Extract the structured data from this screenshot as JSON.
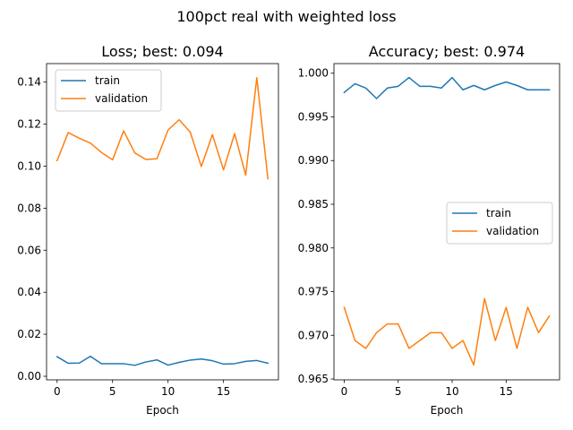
{
  "figure": {
    "suptitle": "100pct real with weighted loss"
  },
  "chart_data": [
    {
      "type": "line",
      "title": "Loss; best: 0.094",
      "xlabel": "Epoch",
      "ylabel": "",
      "xlim": [
        -0.95,
        19.95
      ],
      "ylim": [
        -0.0017,
        0.1488
      ],
      "xticks": [
        0,
        5,
        10,
        15
      ],
      "xtick_labels": [
        "0",
        "5",
        "10",
        "15"
      ],
      "yticks": [
        0.0,
        0.02,
        0.04,
        0.06,
        0.08,
        0.1,
        0.12,
        0.14
      ],
      "ytick_labels": [
        "0.00",
        "0.02",
        "0.04",
        "0.06",
        "0.08",
        "0.10",
        "0.12",
        "0.14"
      ],
      "grid": false,
      "legend_position": "upper left",
      "x": [
        0,
        1,
        2,
        3,
        4,
        5,
        6,
        7,
        8,
        9,
        10,
        11,
        12,
        13,
        14,
        15,
        16,
        17,
        18,
        19
      ],
      "series": [
        {
          "name": "train",
          "color": "#1f77b4",
          "values": [
            0.0093,
            0.0062,
            0.0063,
            0.0095,
            0.006,
            0.006,
            0.006,
            0.0052,
            0.0068,
            0.0078,
            0.0053,
            0.0066,
            0.0077,
            0.0082,
            0.0074,
            0.0058,
            0.006,
            0.0071,
            0.0075,
            0.0062
          ]
        },
        {
          "name": "validation",
          "color": "#ff7f0e",
          "values": [
            0.1026,
            0.116,
            0.1133,
            0.111,
            0.1065,
            0.103,
            0.1168,
            0.1063,
            0.1032,
            0.1035,
            0.1172,
            0.1221,
            0.1162,
            0.0998,
            0.115,
            0.0982,
            0.1155,
            0.0957,
            0.1421,
            0.094
          ]
        }
      ]
    },
    {
      "type": "line",
      "title": "Accuracy; best: 0.974",
      "xlabel": "Epoch",
      "ylabel": "",
      "xlim": [
        -0.95,
        19.95
      ],
      "ylim": [
        0.9649,
        1.0011
      ],
      "xticks": [
        0,
        5,
        10,
        15
      ],
      "xtick_labels": [
        "0",
        "5",
        "10",
        "15"
      ],
      "yticks": [
        0.965,
        0.97,
        0.975,
        0.98,
        0.985,
        0.99,
        0.995,
        1.0
      ],
      "ytick_labels": [
        "0.965",
        "0.970",
        "0.975",
        "0.980",
        "0.985",
        "0.990",
        "0.995",
        "1.000"
      ],
      "grid": false,
      "legend_position": "center right",
      "x": [
        0,
        1,
        2,
        3,
        4,
        5,
        6,
        7,
        8,
        9,
        10,
        11,
        12,
        13,
        14,
        15,
        16,
        17,
        18,
        19
      ],
      "series": [
        {
          "name": "train",
          "color": "#1f77b4",
          "values": [
            0.9978,
            0.9988,
            0.9983,
            0.9971,
            0.9983,
            0.9985,
            0.9995,
            0.9985,
            0.9985,
            0.9983,
            0.9995,
            0.9981,
            0.9986,
            0.9981,
            0.9986,
            0.999,
            0.9986,
            0.9981,
            0.9981,
            0.9981
          ]
        },
        {
          "name": "validation",
          "color": "#ff7f0e",
          "values": [
            0.9732,
            0.9694,
            0.9685,
            0.9703,
            0.9713,
            0.9713,
            0.9685,
            0.9694,
            0.9703,
            0.9703,
            0.9685,
            0.9694,
            0.9666,
            0.9742,
            0.9694,
            0.9732,
            0.9685,
            0.9732,
            0.9703,
            0.9722
          ]
        }
      ]
    }
  ]
}
